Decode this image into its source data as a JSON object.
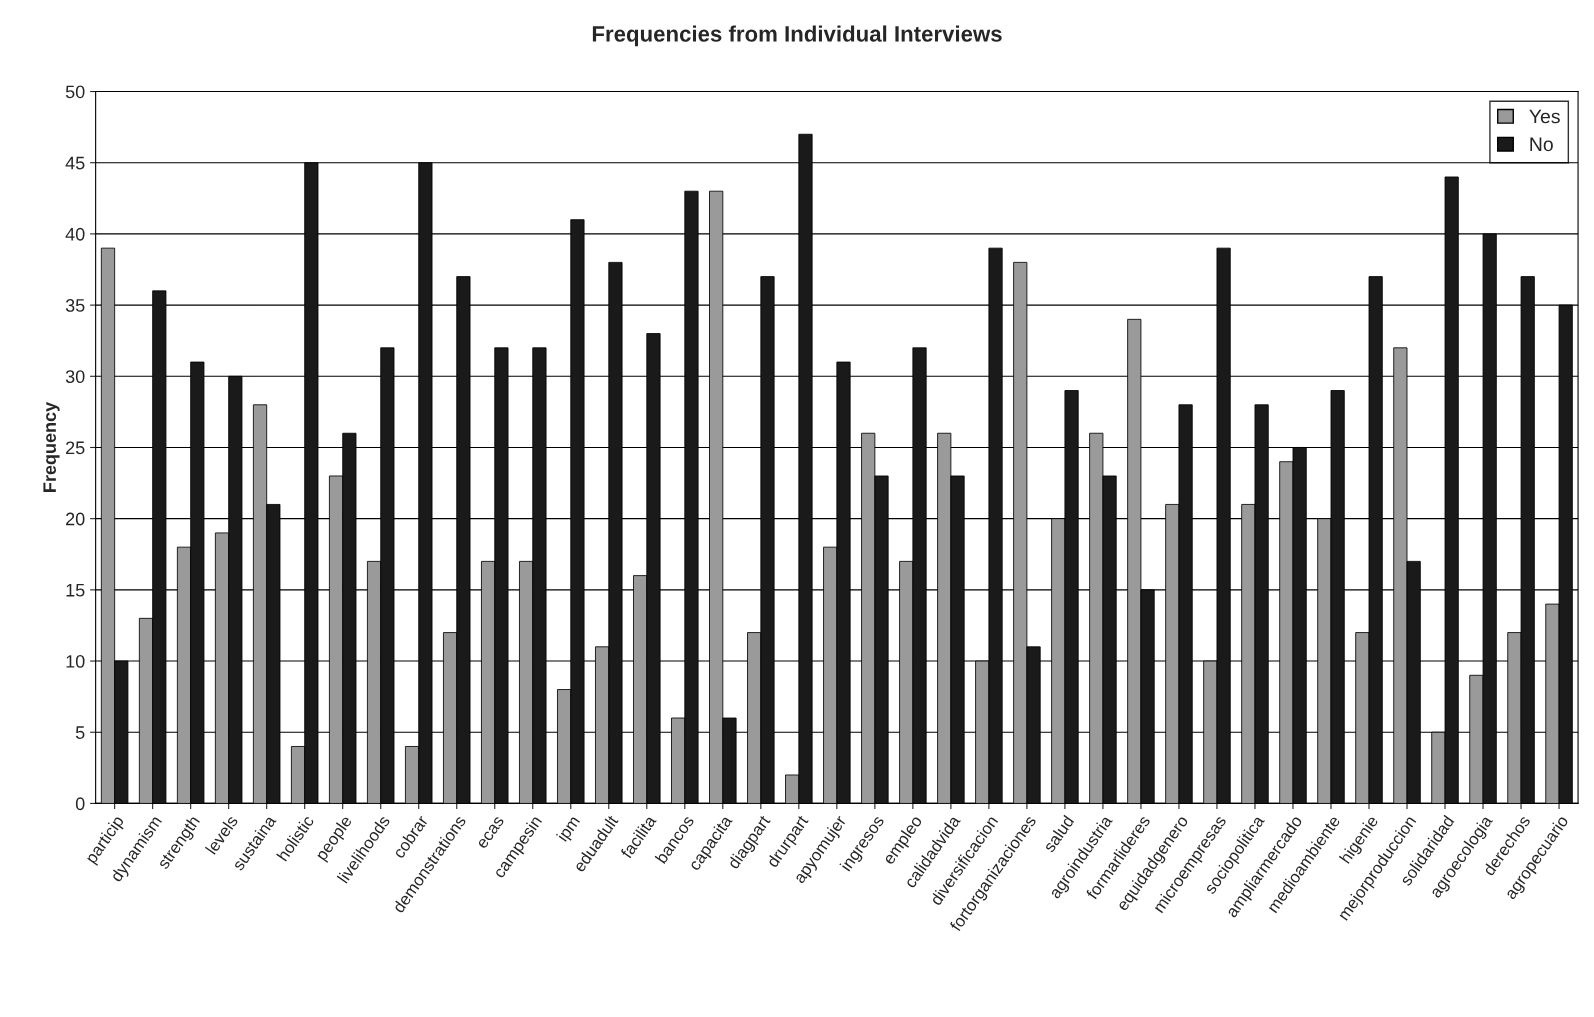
{
  "chart_data": {
    "type": "bar",
    "title": "Frequencies from Individual Interviews",
    "ylabel": "Frequency",
    "categories": [
      "particip",
      "dynamism",
      "strength",
      "levels",
      "sustaina",
      "holistic",
      "people",
      "livelihoods",
      "cobrar",
      "demonstrations",
      "ecas",
      "campesin",
      "ipm",
      "eduadult",
      "facilita",
      "bancos",
      "capacita",
      "diagpart",
      "drurpart",
      "apyomujer",
      "ingresos",
      "empleo",
      "calidadvida",
      "diversificacion",
      "fortorganizaciones",
      "salud",
      "agroindustria",
      "formarlideres",
      "equidadgenero",
      "microempresas",
      "sociopolitica",
      "ampliarmercado",
      "medioambiente",
      "higenie",
      "mejorproduccion",
      "solidaridad",
      "agroecologia",
      "derechos",
      "agropecuario"
    ],
    "series": [
      {
        "name": "Yes",
        "color": "#9a9a9a",
        "values": [
          39,
          13,
          18,
          19,
          28,
          4,
          23,
          17,
          4,
          12,
          17,
          17,
          8,
          11,
          16,
          6,
          43,
          12,
          2,
          18,
          26,
          17,
          26,
          10,
          38,
          20,
          26,
          34,
          21,
          10,
          21,
          24,
          20,
          12,
          32,
          5,
          9,
          12,
          14
        ]
      },
      {
        "name": "No",
        "color": "#1a1a1a",
        "values": [
          10,
          36,
          31,
          30,
          21,
          45,
          26,
          32,
          45,
          37,
          32,
          32,
          41,
          38,
          33,
          43,
          6,
          37,
          47,
          31,
          23,
          32,
          23,
          39,
          11,
          29,
          23,
          15,
          28,
          39,
          28,
          25,
          29,
          37,
          17,
          44,
          40,
          37,
          35
        ]
      }
    ],
    "ylim": [
      0,
      50
    ],
    "yticks": [
      0,
      5,
      10,
      15,
      20,
      25,
      30,
      35,
      40,
      45,
      50
    ],
    "grid": "y",
    "legend": "top right"
  }
}
